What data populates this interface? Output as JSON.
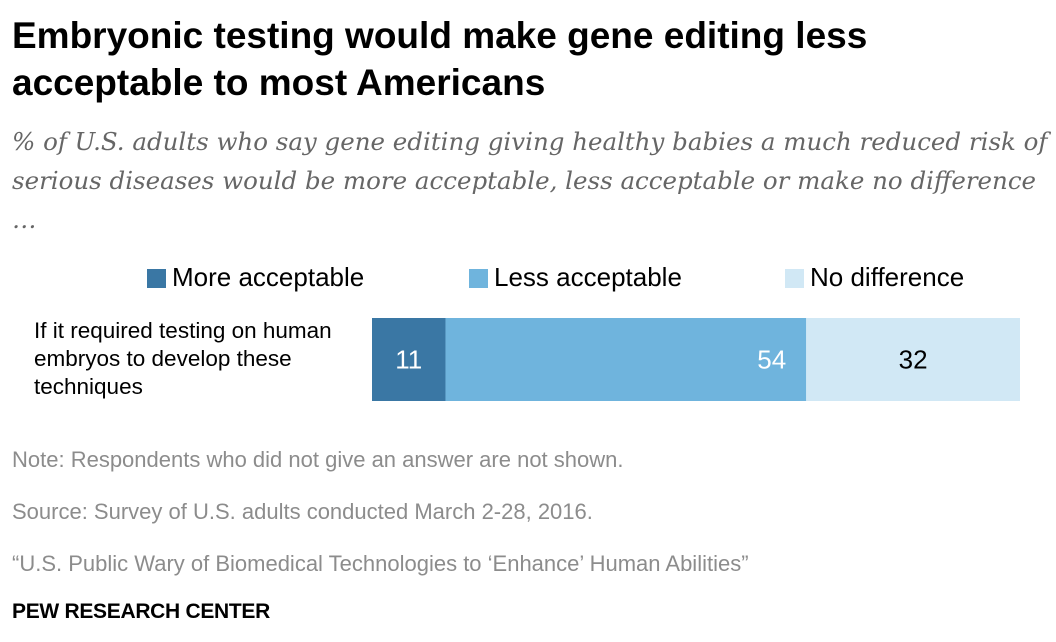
{
  "chart_data": {
    "type": "bar",
    "orientation": "horizontal-stacked",
    "title": "Embryonic testing would make gene editing less acceptable to most Americans",
    "subtitle": "% of U.S. adults who say gene editing giving healthy babies a much reduced risk of serious diseases would be more acceptable, less acceptable or make no difference …",
    "categories": [
      "If it required testing on human embryos to develop these techniques"
    ],
    "series": [
      {
        "name": "More acceptable",
        "values": [
          11
        ],
        "color": "#3a77a4",
        "label_color": "#ffffff"
      },
      {
        "name": "Less acceptable",
        "values": [
          54
        ],
        "color": "#6fb4dd",
        "label_color": "#ffffff"
      },
      {
        "name": "No difference",
        "values": [
          32
        ],
        "color": "#d1e8f5",
        "label_color": "#000000"
      }
    ],
    "xlim": [
      0,
      97
    ],
    "legend_position": "top",
    "grid": false
  },
  "notes": {
    "note": "Note: Respondents who did not give an answer are not shown.",
    "source": "Source: Survey of U.S. adults conducted March 2-28, 2016.",
    "report": "“U.S. Public Wary of Biomedical Technologies to ‘Enhance’ Human Abilities”"
  },
  "brand": "PEW RESEARCH CENTER"
}
